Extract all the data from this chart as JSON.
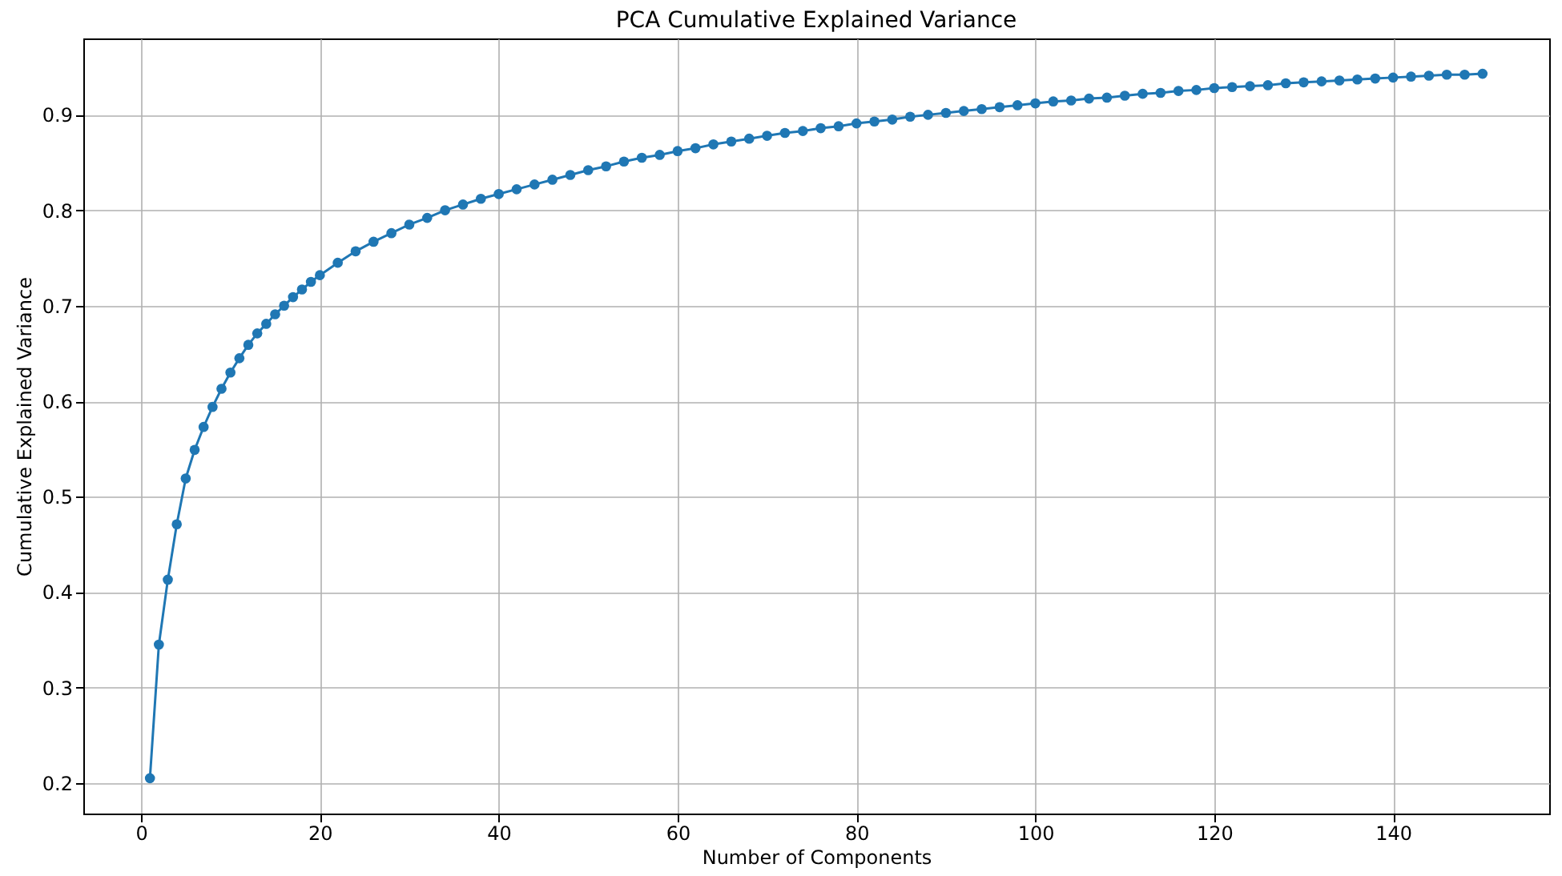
{
  "chart_data": {
    "type": "line",
    "title": "PCA Cumulative Explained Variance",
    "xlabel": "Number of Components",
    "ylabel": "Cumulative Explained Variance",
    "x": [
      1,
      2,
      3,
      4,
      5,
      6,
      7,
      8,
      9,
      10,
      11,
      12,
      13,
      14,
      15,
      16,
      17,
      18,
      19,
      20,
      22,
      24,
      26,
      28,
      30,
      32,
      34,
      36,
      38,
      40,
      42,
      44,
      46,
      48,
      50,
      52,
      54,
      56,
      58,
      60,
      62,
      64,
      66,
      68,
      70,
      72,
      74,
      76,
      78,
      80,
      82,
      84,
      86,
      88,
      90,
      92,
      94,
      96,
      98,
      100,
      102,
      104,
      106,
      108,
      110,
      112,
      114,
      116,
      118,
      120,
      122,
      124,
      126,
      128,
      130,
      132,
      134,
      136,
      138,
      140,
      142,
      144,
      146,
      148,
      150
    ],
    "series": [
      {
        "color": "#1f77b4",
        "values": [
          0.205,
          0.345,
          0.413,
          0.471,
          0.519,
          0.549,
          0.573,
          0.594,
          0.613,
          0.63,
          0.645,
          0.659,
          0.671,
          0.681,
          0.691,
          0.7,
          0.709,
          0.717,
          0.725,
          0.732,
          0.745,
          0.757,
          0.767,
          0.776,
          0.785,
          0.792,
          0.8,
          0.806,
          0.812,
          0.817,
          0.822,
          0.827,
          0.832,
          0.837,
          0.842,
          0.846,
          0.851,
          0.855,
          0.858,
          0.862,
          0.865,
          0.869,
          0.872,
          0.875,
          0.878,
          0.881,
          0.883,
          0.886,
          0.888,
          0.891,
          0.893,
          0.895,
          0.898,
          0.9,
          0.902,
          0.904,
          0.906,
          0.908,
          0.91,
          0.912,
          0.914,
          0.915,
          0.917,
          0.918,
          0.92,
          0.922,
          0.923,
          0.925,
          0.926,
          0.928,
          0.929,
          0.93,
          0.931,
          0.933,
          0.934,
          0.935,
          0.936,
          0.937,
          0.938,
          0.939,
          0.94,
          0.941,
          0.942,
          0.942,
          0.943
        ]
      }
    ],
    "xlim": [
      -6.45,
      157.45
    ],
    "ylim": [
      0.168,
      0.98
    ],
    "xticks": [
      0,
      20,
      40,
      60,
      80,
      100,
      120,
      140
    ],
    "yticks": [
      0.2,
      0.3,
      0.4,
      0.5,
      0.6,
      0.7,
      0.8,
      0.9
    ],
    "grid": true,
    "marker": "circle",
    "line_style": "solid"
  }
}
